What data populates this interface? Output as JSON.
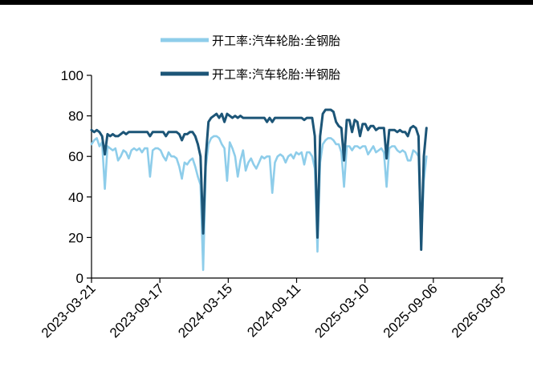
{
  "chart_data": {
    "type": "line",
    "title": "",
    "xlabel": "",
    "ylabel": "",
    "ylim": [
      0,
      100
    ],
    "yticks": [
      0,
      20,
      40,
      60,
      80,
      100
    ],
    "xticks": [
      "2023-03-21",
      "2023-09-17",
      "2024-03-15",
      "2024-09-11",
      "2025-03-10",
      "2025-09-06",
      "2026-03-05"
    ],
    "xlim": [
      "2023-03-21",
      "2026-03-05"
    ],
    "grid": false,
    "legend_position": "top-center",
    "series": [
      {
        "name": "开工率:汽车轮胎:全钢胎",
        "color": "#8ecdea",
        "points": [
          [
            "2023-03-21",
            66
          ],
          [
            "2023-03-28",
            68
          ],
          [
            "2023-04-04",
            69
          ],
          [
            "2023-04-11",
            65
          ],
          [
            "2023-04-18",
            67
          ],
          [
            "2023-04-25",
            44
          ],
          [
            "2023-05-02",
            65
          ],
          [
            "2023-05-09",
            64
          ],
          [
            "2023-05-16",
            63
          ],
          [
            "2023-05-23",
            64
          ],
          [
            "2023-05-30",
            58
          ],
          [
            "2023-06-06",
            60
          ],
          [
            "2023-06-13",
            63
          ],
          [
            "2023-06-20",
            62
          ],
          [
            "2023-06-27",
            59
          ],
          [
            "2023-07-04",
            63
          ],
          [
            "2023-07-11",
            64
          ],
          [
            "2023-07-18",
            63
          ],
          [
            "2023-07-25",
            64
          ],
          [
            "2023-08-01",
            62
          ],
          [
            "2023-08-08",
            64
          ],
          [
            "2023-08-15",
            64
          ],
          [
            "2023-08-22",
            50
          ],
          [
            "2023-08-29",
            63
          ],
          [
            "2023-09-05",
            64
          ],
          [
            "2023-09-12",
            64
          ],
          [
            "2023-09-19",
            63
          ],
          [
            "2023-09-26",
            60
          ],
          [
            "2023-10-03",
            58
          ],
          [
            "2023-10-10",
            62
          ],
          [
            "2023-10-17",
            60
          ],
          [
            "2023-10-24",
            60
          ],
          [
            "2023-10-31",
            59
          ],
          [
            "2023-11-07",
            55
          ],
          [
            "2023-11-14",
            49
          ],
          [
            "2023-11-21",
            57
          ],
          [
            "2023-11-28",
            56
          ],
          [
            "2023-12-05",
            58
          ],
          [
            "2023-12-12",
            59
          ],
          [
            "2023-12-19",
            55
          ],
          [
            "2023-12-26",
            50
          ],
          [
            "2024-01-02",
            46
          ],
          [
            "2024-01-09",
            4
          ],
          [
            "2024-01-16",
            55
          ],
          [
            "2024-01-23",
            66
          ],
          [
            "2024-01-30",
            69
          ],
          [
            "2024-02-06",
            70
          ],
          [
            "2024-02-13",
            70
          ],
          [
            "2024-02-20",
            69
          ],
          [
            "2024-02-27",
            66
          ],
          [
            "2024-03-05",
            64
          ],
          [
            "2024-03-12",
            48
          ],
          [
            "2024-03-19",
            67
          ],
          [
            "2024-03-26",
            64
          ],
          [
            "2024-04-02",
            60
          ],
          [
            "2024-04-09",
            50
          ],
          [
            "2024-04-16",
            58
          ],
          [
            "2024-04-23",
            63
          ],
          [
            "2024-04-30",
            53
          ],
          [
            "2024-05-07",
            57
          ],
          [
            "2024-05-14",
            59
          ],
          [
            "2024-05-21",
            56
          ],
          [
            "2024-05-28",
            54
          ],
          [
            "2024-06-04",
            57
          ],
          [
            "2024-06-11",
            60
          ],
          [
            "2024-06-18",
            59
          ],
          [
            "2024-06-25",
            60
          ],
          [
            "2024-07-02",
            60
          ],
          [
            "2024-07-09",
            42
          ],
          [
            "2024-07-16",
            57
          ],
          [
            "2024-07-23",
            60
          ],
          [
            "2024-07-30",
            61
          ],
          [
            "2024-08-06",
            60
          ],
          [
            "2024-08-13",
            57
          ],
          [
            "2024-08-20",
            60
          ],
          [
            "2024-08-27",
            61
          ],
          [
            "2024-09-03",
            59
          ],
          [
            "2024-09-10",
            62
          ],
          [
            "2024-09-17",
            61
          ],
          [
            "2024-09-24",
            62
          ],
          [
            "2024-10-01",
            56
          ],
          [
            "2024-10-08",
            62
          ],
          [
            "2024-10-15",
            62
          ],
          [
            "2024-10-22",
            60
          ],
          [
            "2024-10-29",
            54
          ],
          [
            "2024-11-05",
            13
          ],
          [
            "2024-11-12",
            57
          ],
          [
            "2024-11-19",
            66
          ],
          [
            "2024-11-26",
            68
          ],
          [
            "2024-12-03",
            69
          ],
          [
            "2024-12-10",
            69
          ],
          [
            "2024-12-17",
            68
          ],
          [
            "2024-12-24",
            66
          ],
          [
            "2024-12-31",
            66
          ],
          [
            "2025-01-07",
            62
          ],
          [
            "2025-01-14",
            45
          ],
          [
            "2025-01-21",
            65
          ],
          [
            "2025-01-28",
            65
          ],
          [
            "2025-02-04",
            63
          ],
          [
            "2025-02-11",
            65
          ],
          [
            "2025-02-18",
            65
          ],
          [
            "2025-02-25",
            64
          ],
          [
            "2025-03-04",
            65
          ],
          [
            "2025-03-11",
            65
          ],
          [
            "2025-03-18",
            61
          ],
          [
            "2025-03-25",
            63
          ],
          [
            "2025-04-01",
            65
          ],
          [
            "2025-04-08",
            62
          ],
          [
            "2025-04-15",
            63
          ],
          [
            "2025-04-22",
            64
          ],
          [
            "2025-04-29",
            62
          ],
          [
            "2025-05-06",
            45
          ],
          [
            "2025-05-13",
            64
          ],
          [
            "2025-05-20",
            65
          ],
          [
            "2025-05-27",
            65
          ],
          [
            "2025-06-03",
            63
          ],
          [
            "2025-06-10",
            62
          ],
          [
            "2025-06-17",
            63
          ],
          [
            "2025-06-24",
            62
          ],
          [
            "2025-07-01",
            58
          ],
          [
            "2025-07-08",
            58
          ],
          [
            "2025-07-15",
            63
          ],
          [
            "2025-07-22",
            62
          ],
          [
            "2025-07-29",
            60
          ],
          [
            "2025-08-05",
            18
          ],
          [
            "2025-08-12",
            48
          ],
          [
            "2025-08-19",
            60
          ]
        ]
      },
      {
        "name": "开工率:汽车轮胎:半钢胎",
        "color": "#1c5577",
        "points": [
          [
            "2023-03-21",
            73
          ],
          [
            "2023-03-28",
            72
          ],
          [
            "2023-04-04",
            73
          ],
          [
            "2023-04-11",
            72
          ],
          [
            "2023-04-18",
            70
          ],
          [
            "2023-04-25",
            61
          ],
          [
            "2023-05-02",
            71
          ],
          [
            "2023-05-09",
            70
          ],
          [
            "2023-05-16",
            71
          ],
          [
            "2023-05-23",
            70
          ],
          [
            "2023-05-30",
            70
          ],
          [
            "2023-06-06",
            71
          ],
          [
            "2023-06-13",
            72
          ],
          [
            "2023-06-20",
            71
          ],
          [
            "2023-06-27",
            72
          ],
          [
            "2023-07-04",
            72
          ],
          [
            "2023-07-11",
            72
          ],
          [
            "2023-07-18",
            72
          ],
          [
            "2023-07-25",
            72
          ],
          [
            "2023-08-01",
            72
          ],
          [
            "2023-08-08",
            72
          ],
          [
            "2023-08-15",
            72
          ],
          [
            "2023-08-22",
            70
          ],
          [
            "2023-08-29",
            72
          ],
          [
            "2023-09-05",
            72
          ],
          [
            "2023-09-12",
            72
          ],
          [
            "2023-09-19",
            72
          ],
          [
            "2023-09-26",
            72
          ],
          [
            "2023-10-03",
            70
          ],
          [
            "2023-10-10",
            72
          ],
          [
            "2023-10-17",
            72
          ],
          [
            "2023-10-24",
            72
          ],
          [
            "2023-10-31",
            72
          ],
          [
            "2023-11-07",
            71
          ],
          [
            "2023-11-14",
            68
          ],
          [
            "2023-11-21",
            71
          ],
          [
            "2023-11-28",
            71
          ],
          [
            "2023-12-05",
            72
          ],
          [
            "2023-12-12",
            72
          ],
          [
            "2023-12-19",
            70
          ],
          [
            "2023-12-26",
            66
          ],
          [
            "2024-01-02",
            60
          ],
          [
            "2024-01-09",
            22
          ],
          [
            "2024-01-16",
            60
          ],
          [
            "2024-01-23",
            77
          ],
          [
            "2024-01-30",
            79
          ],
          [
            "2024-02-06",
            80
          ],
          [
            "2024-02-13",
            81
          ],
          [
            "2024-02-20",
            79
          ],
          [
            "2024-02-27",
            81
          ],
          [
            "2024-03-05",
            77
          ],
          [
            "2024-03-12",
            81
          ],
          [
            "2024-03-19",
            80
          ],
          [
            "2024-03-26",
            79
          ],
          [
            "2024-04-02",
            80
          ],
          [
            "2024-04-09",
            79
          ],
          [
            "2024-04-16",
            80
          ],
          [
            "2024-04-23",
            79
          ],
          [
            "2024-04-30",
            79
          ],
          [
            "2024-05-07",
            79
          ],
          [
            "2024-05-14",
            79
          ],
          [
            "2024-05-21",
            79
          ],
          [
            "2024-05-28",
            79
          ],
          [
            "2024-06-04",
            79
          ],
          [
            "2024-06-11",
            79
          ],
          [
            "2024-06-18",
            79
          ],
          [
            "2024-06-25",
            77
          ],
          [
            "2024-07-02",
            79
          ],
          [
            "2024-07-09",
            77
          ],
          [
            "2024-07-16",
            79
          ],
          [
            "2024-07-23",
            79
          ],
          [
            "2024-07-30",
            79
          ],
          [
            "2024-08-06",
            79
          ],
          [
            "2024-08-13",
            79
          ],
          [
            "2024-08-20",
            79
          ],
          [
            "2024-08-27",
            79
          ],
          [
            "2024-09-03",
            79
          ],
          [
            "2024-09-10",
            79
          ],
          [
            "2024-09-17",
            79
          ],
          [
            "2024-09-24",
            79
          ],
          [
            "2024-10-01",
            78
          ],
          [
            "2024-10-08",
            79
          ],
          [
            "2024-10-15",
            79
          ],
          [
            "2024-10-22",
            79
          ],
          [
            "2024-10-29",
            70
          ],
          [
            "2024-11-05",
            20
          ],
          [
            "2024-11-12",
            70
          ],
          [
            "2024-11-19",
            81
          ],
          [
            "2024-11-26",
            83
          ],
          [
            "2024-12-03",
            83
          ],
          [
            "2024-12-10",
            83
          ],
          [
            "2024-12-17",
            82
          ],
          [
            "2024-12-24",
            77
          ],
          [
            "2024-12-31",
            75
          ],
          [
            "2025-01-07",
            74
          ],
          [
            "2025-01-14",
            58
          ],
          [
            "2025-01-21",
            78
          ],
          [
            "2025-01-28",
            78
          ],
          [
            "2025-02-04",
            72
          ],
          [
            "2025-02-11",
            78
          ],
          [
            "2025-02-18",
            77
          ],
          [
            "2025-02-25",
            70
          ],
          [
            "2025-03-04",
            76
          ],
          [
            "2025-03-11",
            76
          ],
          [
            "2025-03-18",
            73
          ],
          [
            "2025-03-25",
            75
          ],
          [
            "2025-04-01",
            75
          ],
          [
            "2025-04-08",
            73
          ],
          [
            "2025-04-15",
            74
          ],
          [
            "2025-04-22",
            74
          ],
          [
            "2025-04-29",
            74
          ],
          [
            "2025-05-06",
            59
          ],
          [
            "2025-05-13",
            73
          ],
          [
            "2025-05-20",
            73
          ],
          [
            "2025-05-27",
            73
          ],
          [
            "2025-06-03",
            72
          ],
          [
            "2025-06-10",
            73
          ],
          [
            "2025-06-17",
            72
          ],
          [
            "2025-06-24",
            72
          ],
          [
            "2025-07-01",
            70
          ],
          [
            "2025-07-08",
            74
          ],
          [
            "2025-07-15",
            75
          ],
          [
            "2025-07-22",
            74
          ],
          [
            "2025-07-29",
            70
          ],
          [
            "2025-08-05",
            14
          ],
          [
            "2025-08-12",
            60
          ],
          [
            "2025-08-19",
            74
          ]
        ]
      }
    ]
  }
}
